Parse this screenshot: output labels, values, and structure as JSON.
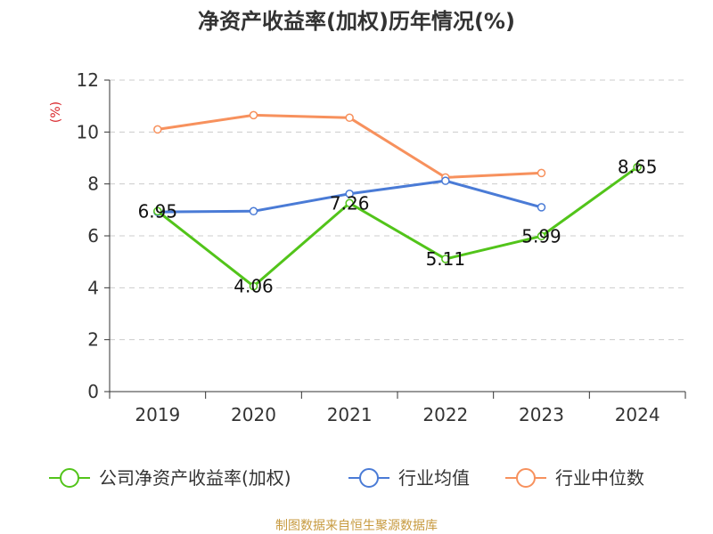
{
  "chart_data": {
    "type": "line",
    "title": "净资产收益率(加权)历年情况(%)",
    "ylabel": "(%)",
    "xlabel": "",
    "categories": [
      "2019",
      "2020",
      "2021",
      "2022",
      "2023",
      "2024"
    ],
    "ylim": [
      0,
      12
    ],
    "yticks": [
      0,
      2,
      4,
      6,
      8,
      10,
      12
    ],
    "grid": true,
    "legend_position": "bottom",
    "series": [
      {
        "name": "公司净资产收益率(加权)",
        "color": "#52c41a",
        "values": [
          6.95,
          4.06,
          7.26,
          5.11,
          5.99,
          8.65
        ],
        "data_labels": [
          "6.95",
          "4.06",
          "7.26",
          "5.11",
          "5.99",
          "8.65"
        ]
      },
      {
        "name": "行业均值",
        "color": "#4a7bd6",
        "values": [
          6.92,
          6.95,
          7.62,
          8.12,
          7.1,
          null
        ]
      },
      {
        "name": "行业中位数",
        "color": "#f7915d",
        "values": [
          10.1,
          10.65,
          10.55,
          8.25,
          8.42,
          null
        ]
      }
    ],
    "source": "制图数据来自恒生聚源数据库",
    "colors": {
      "unit": "#d9262b",
      "source": "#c79a3f",
      "axis": "#333333",
      "grid": "#cccccc"
    }
  }
}
